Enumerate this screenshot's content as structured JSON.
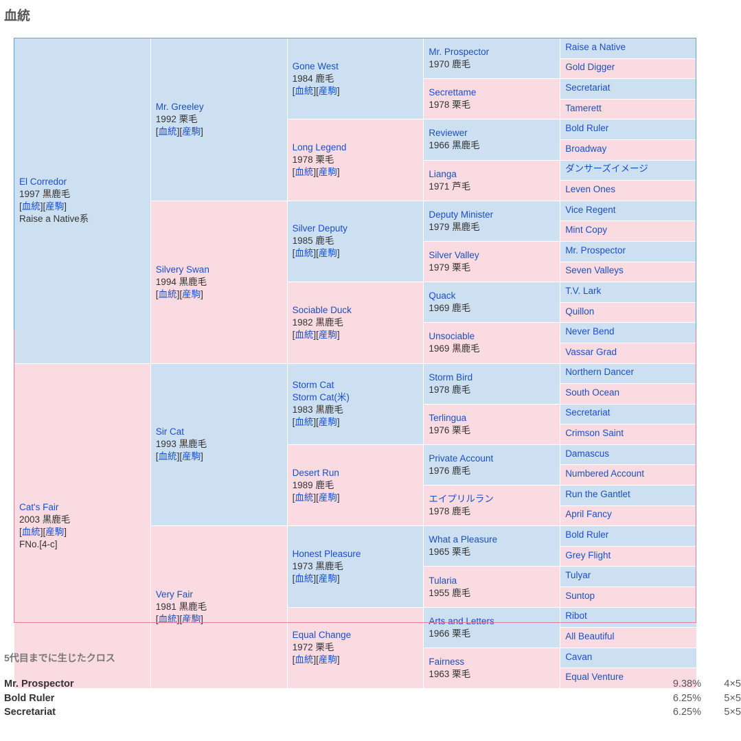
{
  "title": "血統",
  "link_labels": {
    "pedigree": "血統",
    "offspring": "産駒"
  },
  "colors": {
    "male_bg": "#cde0f1",
    "female_bg": "#fadbe1",
    "male_border": "#5aa6e0",
    "female_border": "#e47a99",
    "link": "#1a4fc4"
  },
  "gen1": [
    {
      "name": "El Corredor",
      "info": "1997 黒鹿毛",
      "extra": "Raise a Native系"
    },
    {
      "name": "Cat's Fair",
      "info": "2003 黒鹿毛",
      "extra": "FNo.[4-c]"
    }
  ],
  "gen2": [
    {
      "name": "Mr. Greeley",
      "info": "1992 栗毛"
    },
    {
      "name": "Silvery Swan",
      "info": "1994 黒鹿毛"
    },
    {
      "name": "Sir Cat",
      "info": "1993 黒鹿毛"
    },
    {
      "name": "Very Fair",
      "info": "1981 黒鹿毛"
    }
  ],
  "gen3": [
    {
      "name": "Gone West",
      "info": "1984 鹿毛"
    },
    {
      "name": "Long Legend",
      "info": "1978 栗毛"
    },
    {
      "name": "Silver Deputy",
      "info": "1985 鹿毛"
    },
    {
      "name": "Sociable Duck",
      "info": "1982 黒鹿毛"
    },
    {
      "name": "Storm Cat",
      "alt": "Storm Cat(米)",
      "info": "1983 黒鹿毛"
    },
    {
      "name": "Desert Run",
      "info": "1989 鹿毛"
    },
    {
      "name": "Honest Pleasure",
      "info": "1973 黒鹿毛"
    },
    {
      "name": "Equal Change",
      "info": "1972 栗毛"
    }
  ],
  "gen4": [
    {
      "name": "Mr. Prospector",
      "info": "1970 鹿毛"
    },
    {
      "name": "Secrettame",
      "info": "1978 栗毛"
    },
    {
      "name": "Reviewer",
      "info": "1966 黒鹿毛"
    },
    {
      "name": "Lianga",
      "info": "1971 芦毛"
    },
    {
      "name": "Deputy Minister",
      "info": "1979 黒鹿毛"
    },
    {
      "name": "Silver Valley",
      "info": "1979 栗毛"
    },
    {
      "name": "Quack",
      "info": "1969 鹿毛"
    },
    {
      "name": "Unsociable",
      "info": "1969 黒鹿毛"
    },
    {
      "name": "Storm Bird",
      "info": "1978 鹿毛"
    },
    {
      "name": "Terlingua",
      "info": "1976 栗毛"
    },
    {
      "name": "Private Account",
      "info": "1976 鹿毛"
    },
    {
      "name": "エイプリルラン",
      "info": "1978 鹿毛"
    },
    {
      "name": "What a Pleasure",
      "info": "1965 栗毛"
    },
    {
      "name": "Tularia",
      "info": "1955 鹿毛"
    },
    {
      "name": "Arts and Letters",
      "info": "1966 栗毛"
    },
    {
      "name": "Fairness",
      "info": "1963 栗毛"
    }
  ],
  "gen5": [
    "Raise a Native",
    "Gold Digger",
    "Secretariat",
    "Tamerett",
    "Bold Ruler",
    "Broadway",
    "ダンサーズイメージ",
    "Leven Ones",
    "Vice Regent",
    "Mint Copy",
    "Mr. Prospector",
    "Seven Valleys",
    "T.V. Lark",
    "Quillon",
    "Never Bend",
    "Vassar Grad",
    "Northern Dancer",
    "South Ocean",
    "Secretariat",
    "Crimson Saint",
    "Damascus",
    "Numbered Account",
    "Run the Gantlet",
    "April Fancy",
    "Bold Ruler",
    "Grey Flight",
    "Tulyar",
    "Suntop",
    "Ribot",
    "All Beautiful",
    "Cavan",
    "Equal Venture"
  ],
  "crosses": {
    "heading": "5代目までに生じたクロス",
    "items": [
      {
        "name": "Mr. Prospector",
        "percent": "9.38%",
        "generations": "4×5"
      },
      {
        "name": "Bold Ruler",
        "percent": "6.25%",
        "generations": "5×5"
      },
      {
        "name": "Secretariat",
        "percent": "6.25%",
        "generations": "5×5"
      }
    ]
  }
}
